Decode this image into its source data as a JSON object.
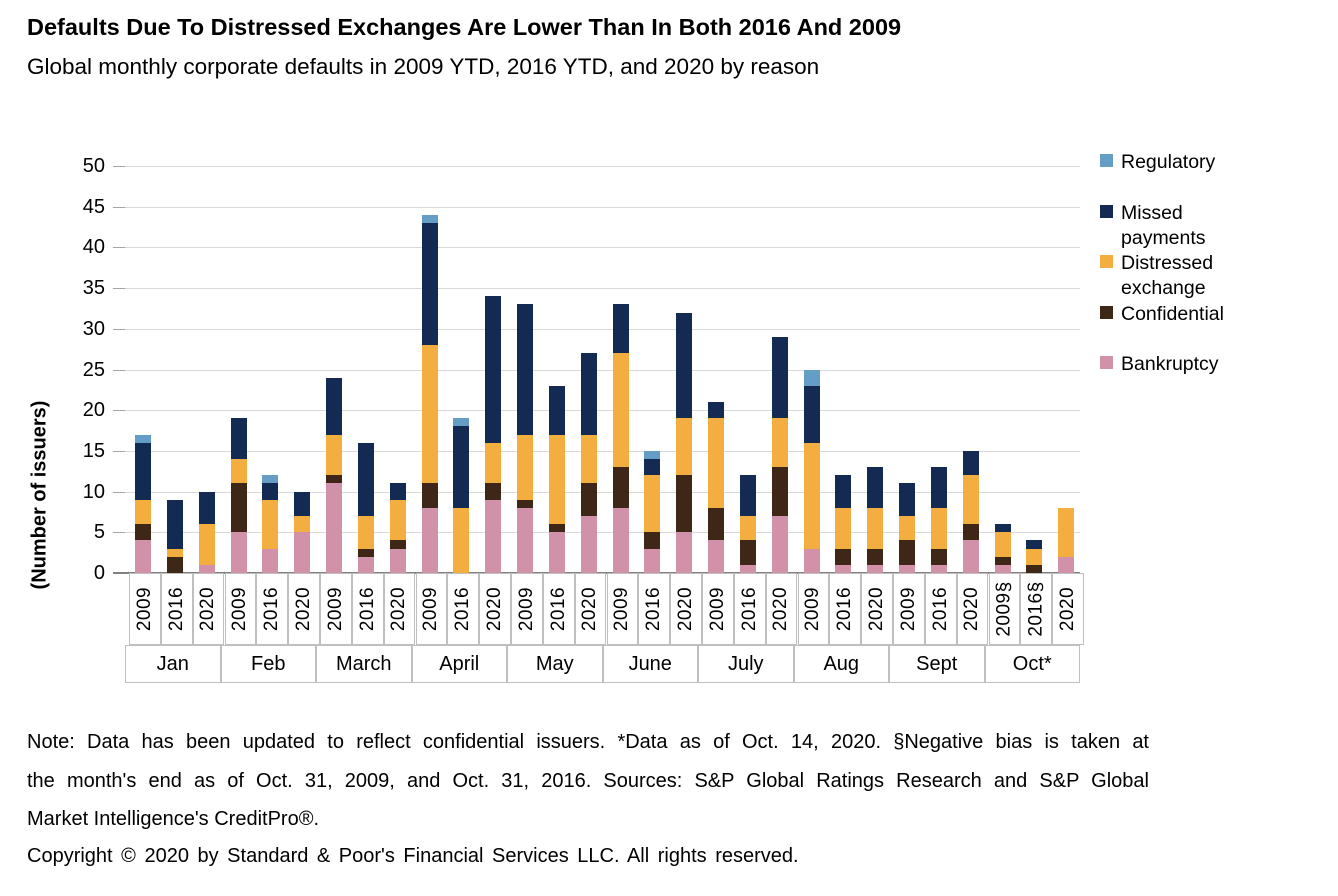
{
  "header": {
    "title": "Defaults Due To Distressed Exchanges Are Lower Than In Both 2016 And 2009",
    "subtitle": "Global monthly corporate defaults in 2009 YTD, 2016 YTD, and 2020 by reason"
  },
  "chart_data": {
    "type": "bar",
    "stacked": true,
    "title": "Defaults Due To Distressed Exchanges Are Lower Than In Both 2016 And 2009",
    "subtitle": "Global monthly corporate defaults in 2009 YTD, 2016 YTD, and 2020 by reason",
    "xlabel": "",
    "ylabel": "(Number of issuers)",
    "ylim": [
      0,
      50
    ],
    "yticks": [
      0,
      5,
      10,
      15,
      20,
      25,
      30,
      35,
      40,
      45,
      50
    ],
    "grid": "horizontal",
    "legend_position": "right",
    "months": [
      "Jan",
      "Feb",
      "March",
      "April",
      "May",
      "June",
      "July",
      "Aug",
      "Sept",
      "Oct*"
    ],
    "series": [
      {
        "key": "bankruptcy",
        "label": "Bankruptcy",
        "color": "#D192A9"
      },
      {
        "key": "confidential",
        "label": "Confidential",
        "color": "#3F2718"
      },
      {
        "key": "distressed_exchange",
        "label": "Distressed exchange",
        "color": "#F4AE40"
      },
      {
        "key": "missed_payments",
        "label": "Missed payments",
        "color": "#132A52"
      },
      {
        "key": "regulatory",
        "label": "Regulatory",
        "color": "#649EC7"
      }
    ],
    "legend_order": [
      "regulatory",
      "missed_payments",
      "distressed_exchange",
      "confidential",
      "bankruptcy"
    ],
    "groups": [
      {
        "month": "Jan",
        "bars": [
          {
            "year": "2009",
            "total": 17,
            "segments": {
              "bankruptcy": 4,
              "confidential": 2,
              "distressed_exchange": 3,
              "missed_payments": 7,
              "regulatory": 1
            }
          },
          {
            "year": "2016",
            "total": 9,
            "segments": {
              "bankruptcy": 0,
              "confidential": 2,
              "distressed_exchange": 1,
              "missed_payments": 6,
              "regulatory": 0
            }
          },
          {
            "year": "2020",
            "total": 10,
            "segments": {
              "bankruptcy": 1,
              "confidential": 0,
              "distressed_exchange": 5,
              "missed_payments": 4,
              "regulatory": 0
            }
          }
        ]
      },
      {
        "month": "Feb",
        "bars": [
          {
            "year": "2009",
            "total": 19,
            "segments": {
              "bankruptcy": 5,
              "confidential": 6,
              "distressed_exchange": 3,
              "missed_payments": 5,
              "regulatory": 0
            }
          },
          {
            "year": "2016",
            "total": 12,
            "segments": {
              "bankruptcy": 3,
              "confidential": 0,
              "distressed_exchange": 6,
              "missed_payments": 2,
              "regulatory": 1
            }
          },
          {
            "year": "2020",
            "total": 10,
            "segments": {
              "bankruptcy": 5,
              "confidential": 0,
              "distressed_exchange": 2,
              "missed_payments": 3,
              "regulatory": 0
            }
          }
        ]
      },
      {
        "month": "March",
        "bars": [
          {
            "year": "2009",
            "total": 24,
            "segments": {
              "bankruptcy": 11,
              "confidential": 1,
              "distressed_exchange": 5,
              "missed_payments": 7,
              "regulatory": 0
            }
          },
          {
            "year": "2016",
            "total": 16,
            "segments": {
              "bankruptcy": 2,
              "confidential": 1,
              "distressed_exchange": 4,
              "missed_payments": 9,
              "regulatory": 0
            }
          },
          {
            "year": "2020",
            "total": 11,
            "segments": {
              "bankruptcy": 3,
              "confidential": 1,
              "distressed_exchange": 5,
              "missed_payments": 2,
              "regulatory": 0
            }
          }
        ]
      },
      {
        "month": "April",
        "bars": [
          {
            "year": "2009",
            "total": 44,
            "segments": {
              "bankruptcy": 8,
              "confidential": 3,
              "distressed_exchange": 17,
              "missed_payments": 15,
              "regulatory": 1
            }
          },
          {
            "year": "2016",
            "total": 19,
            "segments": {
              "bankruptcy": 0,
              "confidential": 0,
              "distressed_exchange": 8,
              "missed_payments": 10,
              "regulatory": 1
            }
          },
          {
            "year": "2020",
            "total": 34,
            "segments": {
              "bankruptcy": 9,
              "confidential": 2,
              "distressed_exchange": 5,
              "missed_payments": 18,
              "regulatory": 0
            }
          }
        ]
      },
      {
        "month": "May",
        "bars": [
          {
            "year": "2009",
            "total": 33,
            "segments": {
              "bankruptcy": 8,
              "confidential": 1,
              "distressed_exchange": 8,
              "missed_payments": 16,
              "regulatory": 0
            }
          },
          {
            "year": "2016",
            "total": 23,
            "segments": {
              "bankruptcy": 5,
              "confidential": 1,
              "distressed_exchange": 11,
              "missed_payments": 6,
              "regulatory": 0
            }
          },
          {
            "year": "2020",
            "total": 27,
            "segments": {
              "bankruptcy": 7,
              "confidential": 4,
              "distressed_exchange": 6,
              "missed_payments": 10,
              "regulatory": 0
            }
          }
        ]
      },
      {
        "month": "June",
        "bars": [
          {
            "year": "2009",
            "total": 33,
            "segments": {
              "bankruptcy": 8,
              "confidential": 5,
              "distressed_exchange": 14,
              "missed_payments": 6,
              "regulatory": 0
            }
          },
          {
            "year": "2016",
            "total": 15,
            "segments": {
              "bankruptcy": 3,
              "confidential": 2,
              "distressed_exchange": 7,
              "missed_payments": 2,
              "regulatory": 1
            }
          },
          {
            "year": "2020",
            "total": 32,
            "segments": {
              "bankruptcy": 5,
              "confidential": 7,
              "distressed_exchange": 7,
              "missed_payments": 13,
              "regulatory": 0
            }
          }
        ]
      },
      {
        "month": "July",
        "bars": [
          {
            "year": "2009",
            "total": 21,
            "segments": {
              "bankruptcy": 4,
              "confidential": 4,
              "distressed_exchange": 11,
              "missed_payments": 2,
              "regulatory": 0
            }
          },
          {
            "year": "2016",
            "total": 12,
            "segments": {
              "bankruptcy": 1,
              "confidential": 3,
              "distressed_exchange": 3,
              "missed_payments": 5,
              "regulatory": 0
            }
          },
          {
            "year": "2020",
            "total": 29,
            "segments": {
              "bankruptcy": 7,
              "confidential": 6,
              "distressed_exchange": 6,
              "missed_payments": 10,
              "regulatory": 0
            }
          }
        ]
      },
      {
        "month": "Aug",
        "bars": [
          {
            "year": "2009",
            "total": 25,
            "segments": {
              "bankruptcy": 3,
              "confidential": 0,
              "distressed_exchange": 13,
              "missed_payments": 7,
              "regulatory": 2
            }
          },
          {
            "year": "2016",
            "total": 12,
            "segments": {
              "bankruptcy": 1,
              "confidential": 2,
              "distressed_exchange": 5,
              "missed_payments": 4,
              "regulatory": 0
            }
          },
          {
            "year": "2020",
            "total": 13,
            "segments": {
              "bankruptcy": 1,
              "confidential": 2,
              "distressed_exchange": 5,
              "missed_payments": 5,
              "regulatory": 0
            }
          }
        ]
      },
      {
        "month": "Sept",
        "bars": [
          {
            "year": "2009",
            "total": 11,
            "segments": {
              "bankruptcy": 1,
              "confidential": 3,
              "distressed_exchange": 3,
              "missed_payments": 4,
              "regulatory": 0
            }
          },
          {
            "year": "2016",
            "total": 13,
            "segments": {
              "bankruptcy": 1,
              "confidential": 2,
              "distressed_exchange": 5,
              "missed_payments": 5,
              "regulatory": 0
            }
          },
          {
            "year": "2020",
            "total": 15,
            "segments": {
              "bankruptcy": 4,
              "confidential": 2,
              "distressed_exchange": 6,
              "missed_payments": 3,
              "regulatory": 0
            }
          }
        ]
      },
      {
        "month": "Oct*",
        "bars": [
          {
            "year": "2009§",
            "total": 6,
            "segments": {
              "bankruptcy": 1,
              "confidential": 1,
              "distressed_exchange": 3,
              "missed_payments": 1,
              "regulatory": 0
            }
          },
          {
            "year": "2016§",
            "total": 4,
            "segments": {
              "bankruptcy": 0,
              "confidential": 1,
              "distressed_exchange": 2,
              "missed_payments": 1,
              "regulatory": 0
            }
          },
          {
            "year": "2020",
            "total": 8,
            "segments": {
              "bankruptcy": 2,
              "confidential": 0,
              "distressed_exchange": 6,
              "missed_payments": 0,
              "regulatory": 0
            }
          }
        ]
      }
    ],
    "colors": {
      "regulatory": "#649EC7",
      "missed_payments": "#132A52",
      "distressed_exchange": "#F4AE40",
      "confidential": "#3F2718",
      "bankruptcy": "#D192A9",
      "gridline": "#D9D9D9",
      "axis_border": "#BFBFBF",
      "baseline": "#808080"
    }
  },
  "footer": {
    "note_lines": [
      "Note: Data has been updated to reflect confidential issuers. *Data as of Oct. 14, 2020. §Negative bias is taken at",
      "the month's end as of Oct. 31, 2009, and Oct. 31, 2016. Sources: S&P Global Ratings Research and S&P Global",
      "Market Intelligence's CreditPro®."
    ],
    "copyright": "Copyright © 2020 by Standard & Poor's Financial Services LLC. All rights reserved."
  }
}
